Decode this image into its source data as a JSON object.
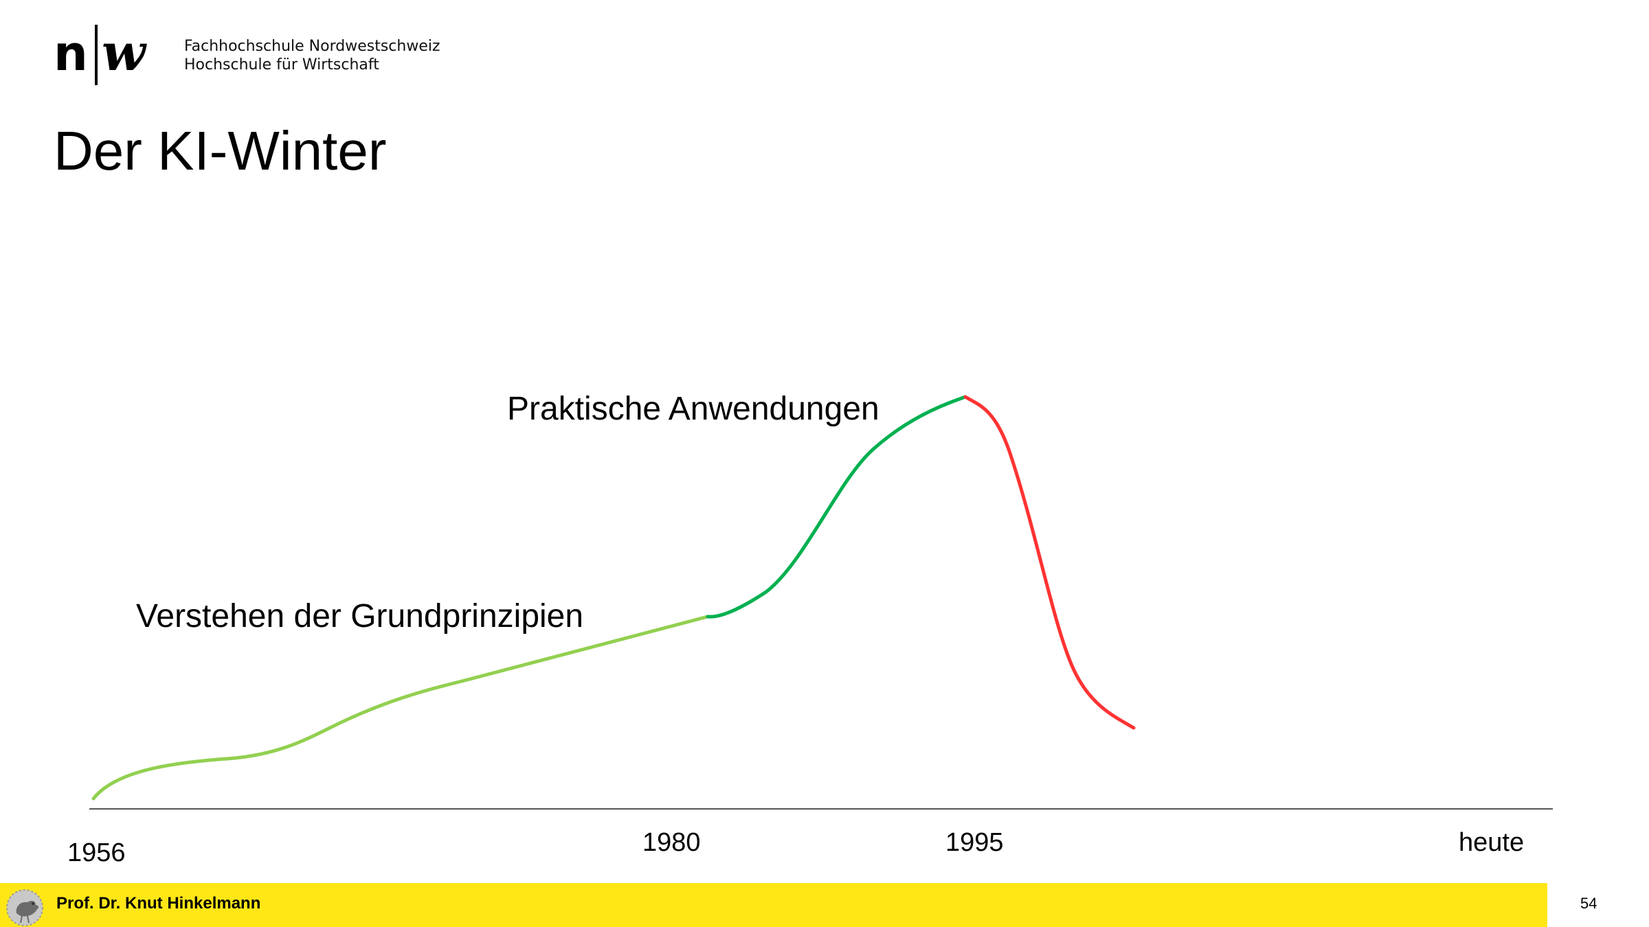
{
  "header": {
    "institution_line1": "Fachhochschule Nordwestschweiz",
    "institution_line2": "Hochschule für Wirtschaft"
  },
  "slide": {
    "title": "Der KI-Winter",
    "page_number": "54"
  },
  "footer": {
    "author": "Prof. Dr. Knut Hinkelmann"
  },
  "diagram": {
    "labels": {
      "phase1": "Verstehen der Grundprinzipien",
      "phase2": "Praktische Anwendungen"
    },
    "timeline": [
      "1956",
      "1980",
      "1995",
      "heute"
    ],
    "colors": {
      "phase1": "#92d050",
      "phase2": "#00b050",
      "decline": "#ff3333",
      "axis": "#555555",
      "footer": "#ffe716"
    }
  }
}
